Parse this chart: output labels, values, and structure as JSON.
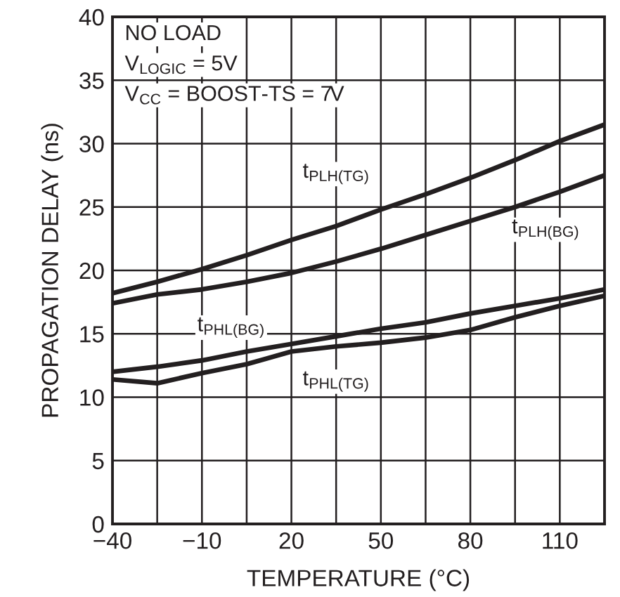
{
  "chart_data": {
    "type": "line",
    "xlabel": "TEMPERATURE (°C)",
    "ylabel": "PROPAGATION DELAY (ns)",
    "x": [
      -40,
      -25,
      -10,
      5,
      20,
      35,
      50,
      65,
      80,
      95,
      110,
      125
    ],
    "series": [
      {
        "name": "t$_{PLH(TG)}$",
        "color": "#231f20",
        "values": [
          18.2,
          19.1,
          20.1,
          21.2,
          22.4,
          23.5,
          24.8,
          26.0,
          27.3,
          28.7,
          30.2,
          31.5
        ]
      },
      {
        "name": "t$_{PLH(BG)}$",
        "color": "#231f20",
        "values": [
          17.4,
          18.1,
          18.5,
          19.1,
          19.8,
          20.7,
          21.7,
          22.8,
          23.9,
          25.0,
          26.2,
          27.5
        ]
      },
      {
        "name": "t$_{PHL(BG)}$",
        "color": "#231f20",
        "values": [
          12.0,
          12.4,
          12.9,
          13.6,
          14.2,
          14.8,
          15.4,
          15.9,
          16.6,
          17.2,
          17.8,
          18.5
        ]
      },
      {
        "name": "t$_{PHL(TG)}$",
        "color": "#231f20",
        "values": [
          11.4,
          11.1,
          11.9,
          12.6,
          13.6,
          14.0,
          14.3,
          14.7,
          15.3,
          16.3,
          17.2,
          18.0
        ]
      }
    ],
    "annotations": [
      "NO LOAD",
      "V$_{LOGIC}$ = 5V",
      "V$_{CC}$ = BOOST-TS = 7V"
    ],
    "xlim": [
      -40,
      125
    ],
    "ylim": [
      0,
      40
    ],
    "xticks": [
      -40,
      {
        "value": -25,
        "label": null
      },
      -10,
      {
        "value": 5,
        "label": null
      },
      20,
      {
        "value": 35,
        "label": null
      },
      50,
      {
        "value": 65,
        "label": null
      },
      80,
      {
        "value": 95,
        "label": null
      },
      110,
      {
        "value": 125,
        "label": null
      }
    ],
    "yticks": [
      0,
      5,
      10,
      15,
      20,
      25,
      30,
      35,
      40
    ],
    "grid": true,
    "legend": false,
    "marker": "none",
    "line_style": "solid"
  }
}
